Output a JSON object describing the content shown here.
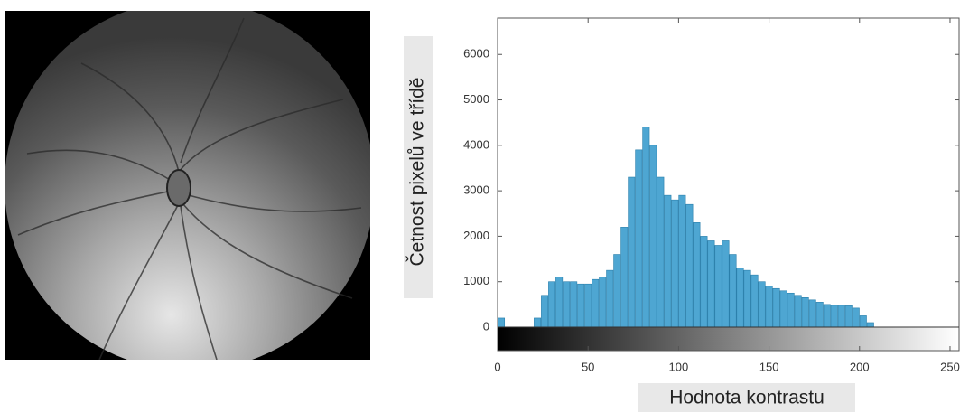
{
  "chart_data": {
    "type": "histogram",
    "xlabel": "Hodnota kontrastu",
    "ylabel": "Četnost pixelů ve třídě",
    "bins": [
      0,
      4,
      8,
      12,
      16,
      20,
      24,
      28,
      32,
      36,
      40,
      44,
      48,
      52,
      56,
      60,
      64,
      68,
      72,
      76,
      80,
      84,
      88,
      92,
      96,
      100,
      104,
      108,
      112,
      116,
      120,
      124,
      128,
      132,
      136,
      140,
      144,
      148,
      152,
      156,
      160,
      164,
      168,
      172,
      176,
      180,
      184,
      188,
      192,
      196,
      200,
      204,
      208,
      212,
      216,
      220,
      224,
      228,
      232,
      236,
      240,
      244,
      248,
      252,
      256
    ],
    "values": [
      200,
      0,
      0,
      0,
      0,
      200,
      700,
      1000,
      1100,
      1000,
      1000,
      950,
      950,
      1050,
      1100,
      1250,
      1600,
      2200,
      3300,
      3900,
      4400,
      4000,
      3300,
      2900,
      2800,
      2900,
      2700,
      2300,
      2000,
      1900,
      1800,
      1900,
      1600,
      1300,
      1250,
      1150,
      1000,
      900,
      850,
      800,
      750,
      700,
      650,
      600,
      550,
      500,
      480,
      480,
      470,
      420,
      250,
      100,
      0,
      0,
      0,
      0,
      0,
      0,
      0,
      0,
      0,
      0,
      0,
      0
    ],
    "color": "#4ea6d2",
    "xlim": [
      0,
      255
    ],
    "ylim": [
      0,
      6800
    ],
    "xticks": [
      0,
      50,
      100,
      150,
      200,
      250
    ],
    "yticks": [
      0,
      1000,
      2000,
      3000,
      4000,
      5000,
      6000
    ],
    "grid": false
  }
}
